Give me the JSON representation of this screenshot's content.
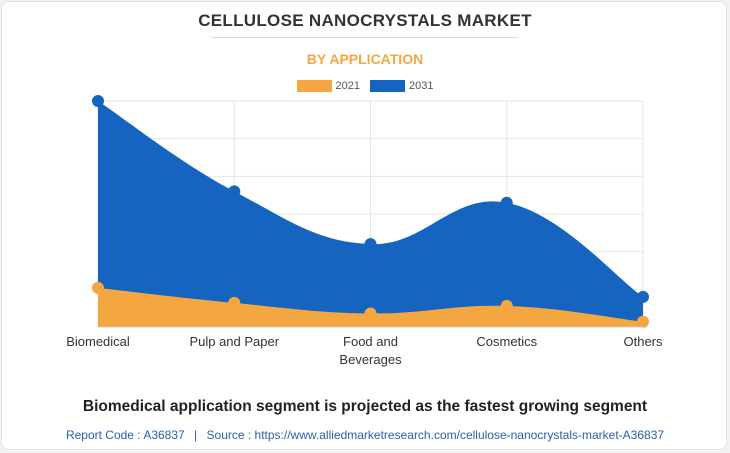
{
  "header": {
    "title": "CELLULOSE NANOCRYSTALS MARKET",
    "subtitle": "BY APPLICATION"
  },
  "footer": {
    "headline": "Biomedical application segment is projected as the fastest growing segment",
    "report_code_label": "Report Code : A36837",
    "separator": "|",
    "source_label": "Source : https://www.alliedmarketresearch.com/cellulose-nanocrystals-market-A36837"
  },
  "colors": {
    "series_2021": "#f4a640",
    "series_2031": "#1565c0",
    "subtitle": "#f4a640",
    "grid": "#e6e6e6"
  },
  "chart_data": {
    "type": "area",
    "title": "",
    "xlabel": "",
    "ylabel": "",
    "categories": [
      "Biomedical",
      "Pulp and Paper",
      "Food and Beverages",
      "Cosmetics",
      "Others"
    ],
    "ylim": [
      0,
      30
    ],
    "grid": true,
    "legend_position": "top-center",
    "series": [
      {
        "name": "2021",
        "values": [
          5.2,
          3.2,
          1.8,
          2.8,
          0.7
        ]
      },
      {
        "name": "2031",
        "values": [
          30,
          18,
          11,
          16.5,
          4
        ]
      }
    ]
  }
}
